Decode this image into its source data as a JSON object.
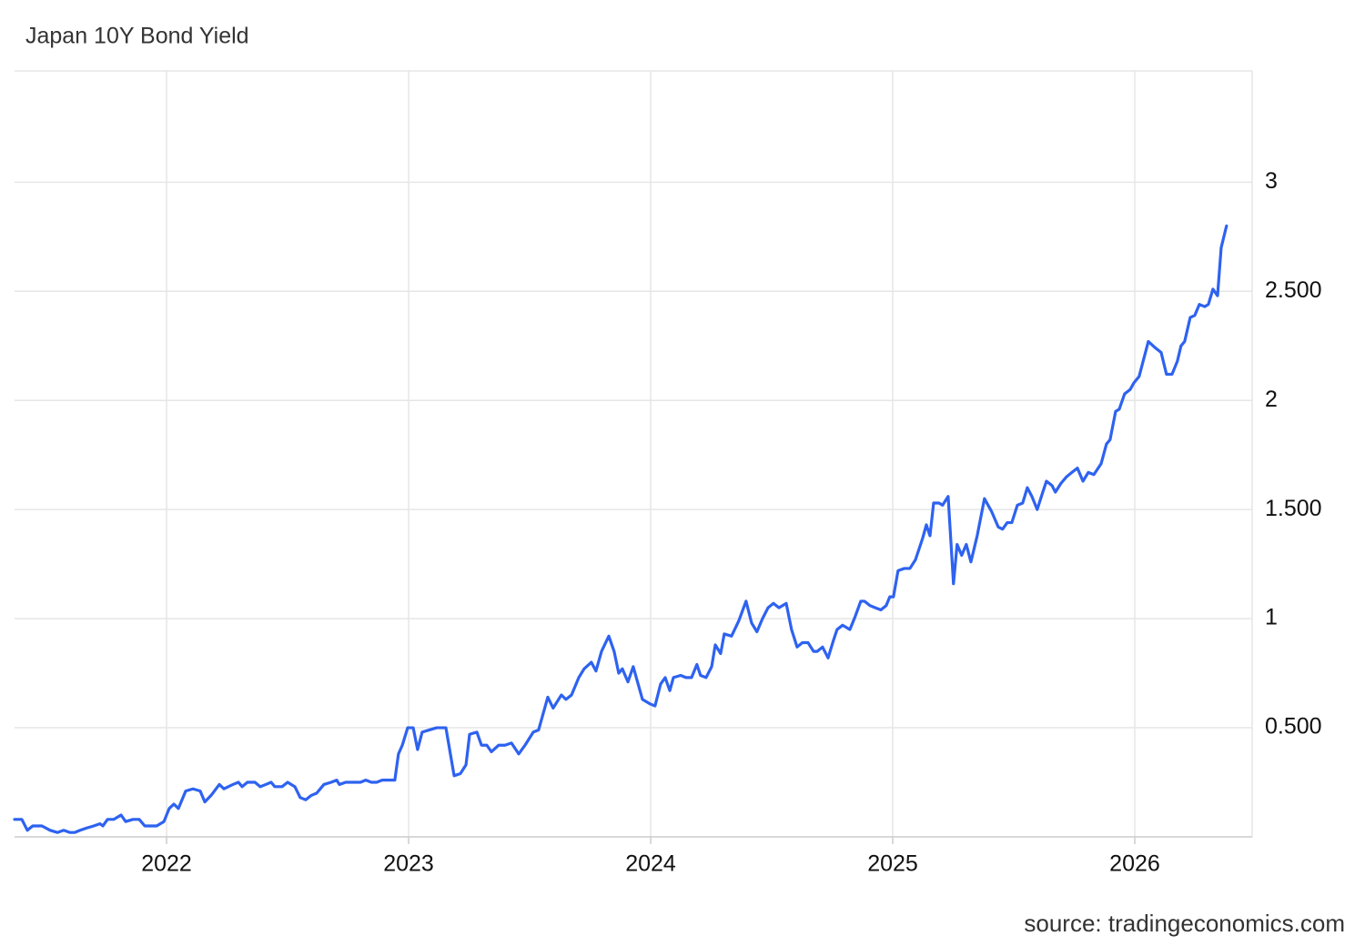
{
  "chart_data": {
    "type": "line",
    "title": "Japan 10Y Bond Yield",
    "source": "source: tradingeconomics.com",
    "color": "#2e62f0",
    "grid": true,
    "xlim": [
      2021.372,
      2026.485
    ],
    "xticks": [
      2022,
      2023,
      2024,
      2025,
      2026
    ],
    "ylim": [
      0,
      3.51
    ],
    "yticks": [
      {
        "value": 0.5,
        "label": "0.500"
      },
      1,
      {
        "value": 1.5,
        "label": "1.500"
      },
      2,
      {
        "value": 2.5,
        "label": "2.500"
      },
      3
    ],
    "x": [
      2021.372,
      2021.402,
      2021.425,
      2021.447,
      2021.485,
      2021.519,
      2021.549,
      2021.575,
      2021.601,
      2021.62,
      2021.643,
      2021.669,
      2021.699,
      2021.725,
      2021.737,
      2021.756,
      2021.782,
      2021.812,
      2021.831,
      2021.861,
      2021.887,
      2021.91,
      2021.936,
      2021.959,
      2021.989,
      2022.011,
      2022.03,
      2022.049,
      2022.079,
      2022.109,
      2022.139,
      2022.158,
      2022.184,
      2022.218,
      2022.237,
      2022.274,
      2022.297,
      2022.312,
      2022.334,
      2022.365,
      2022.387,
      2022.41,
      2022.432,
      2022.447,
      2022.477,
      2022.5,
      2022.53,
      2022.552,
      2022.575,
      2022.598,
      2022.62,
      2022.65,
      2022.68,
      2022.703,
      2022.714,
      2022.74,
      2022.778,
      2022.801,
      2022.823,
      2022.846,
      2022.868,
      2022.891,
      2022.913,
      2022.943,
      2022.958,
      2022.974,
      2022.996,
      2023.019,
      2023.037,
      2023.056,
      2023.086,
      2023.116,
      2023.154,
      2023.188,
      2023.214,
      2023.237,
      2023.252,
      2023.282,
      2023.301,
      2023.323,
      2023.342,
      2023.372,
      2023.398,
      2023.425,
      2023.455,
      2023.481,
      2023.515,
      2023.537,
      2023.575,
      2023.597,
      2023.631,
      2023.65,
      2023.673,
      2023.703,
      2023.725,
      2023.755,
      2023.774,
      2023.797,
      2023.827,
      2023.849,
      2023.868,
      2023.883,
      2023.906,
      2023.928,
      2023.966,
      2023.996,
      2024.018,
      2024.041,
      2024.06,
      2024.079,
      2024.094,
      2024.124,
      2024.146,
      2024.169,
      2024.191,
      2024.206,
      2024.229,
      2024.252,
      2024.267,
      2024.289,
      2024.304,
      2024.334,
      2024.364,
      2024.394,
      2024.417,
      2024.439,
      2024.462,
      2024.485,
      2024.507,
      2024.53,
      2024.56,
      2024.582,
      2024.605,
      2024.627,
      2024.65,
      2024.673,
      2024.688,
      2024.71,
      2024.733,
      2024.755,
      2024.77,
      2024.793,
      2024.823,
      2024.845,
      2024.868,
      2024.883,
      2024.906,
      2024.928,
      2024.951,
      2024.973,
      2024.988,
      2025.003,
      2025.022,
      2025.048,
      2025.071,
      2025.094,
      2025.124,
      2025.139,
      2025.154,
      2025.169,
      2025.191,
      2025.206,
      2025.229,
      2025.251,
      2025.266,
      2025.285,
      2025.304,
      2025.323,
      2025.349,
      2025.379,
      2025.409,
      2025.436,
      2025.454,
      2025.473,
      2025.492,
      2025.515,
      2025.537,
      2025.556,
      2025.575,
      2025.597,
      2025.62,
      2025.635,
      2025.658,
      2025.672,
      2025.695,
      2025.718,
      2025.74,
      2025.763,
      2025.786,
      2025.808,
      2025.831,
      2025.861,
      2025.883,
      2025.898,
      2025.921,
      2025.936,
      2025.958,
      2025.981,
      2025.996,
      2026.018,
      2026.056,
      2026.086,
      2026.109,
      2026.131,
      2026.154,
      2026.176,
      2026.191,
      2026.206,
      2026.229,
      2026.248,
      2026.267,
      2026.289,
      2026.304,
      2026.323,
      2026.342,
      2026.357,
      2026.379
    ],
    "values": [
      0.08,
      0.08,
      0.03,
      0.05,
      0.05,
      0.03,
      0.02,
      0.03,
      0.02,
      0.02,
      0.03,
      0.04,
      0.05,
      0.06,
      0.05,
      0.08,
      0.08,
      0.1,
      0.07,
      0.08,
      0.08,
      0.05,
      0.05,
      0.05,
      0.07,
      0.13,
      0.15,
      0.13,
      0.21,
      0.22,
      0.21,
      0.16,
      0.19,
      0.24,
      0.22,
      0.24,
      0.25,
      0.23,
      0.25,
      0.25,
      0.23,
      0.24,
      0.25,
      0.23,
      0.23,
      0.25,
      0.23,
      0.18,
      0.17,
      0.19,
      0.2,
      0.24,
      0.25,
      0.26,
      0.24,
      0.25,
      0.25,
      0.25,
      0.26,
      0.25,
      0.25,
      0.26,
      0.26,
      0.26,
      0.38,
      0.42,
      0.5,
      0.5,
      0.4,
      0.48,
      0.49,
      0.5,
      0.5,
      0.28,
      0.29,
      0.33,
      0.47,
      0.48,
      0.42,
      0.42,
      0.39,
      0.42,
      0.42,
      0.43,
      0.38,
      0.42,
      0.48,
      0.49,
      0.64,
      0.59,
      0.65,
      0.63,
      0.65,
      0.73,
      0.77,
      0.8,
      0.76,
      0.85,
      0.92,
      0.85,
      0.75,
      0.77,
      0.71,
      0.78,
      0.63,
      0.61,
      0.6,
      0.7,
      0.73,
      0.67,
      0.73,
      0.74,
      0.73,
      0.73,
      0.79,
      0.74,
      0.73,
      0.78,
      0.88,
      0.84,
      0.93,
      0.92,
      0.99,
      1.08,
      0.98,
      0.94,
      1.0,
      1.05,
      1.07,
      1.05,
      1.07,
      0.95,
      0.87,
      0.89,
      0.89,
      0.85,
      0.85,
      0.87,
      0.82,
      0.9,
      0.95,
      0.97,
      0.95,
      1.01,
      1.08,
      1.08,
      1.06,
      1.05,
      1.04,
      1.06,
      1.1,
      1.1,
      1.22,
      1.23,
      1.23,
      1.27,
      1.37,
      1.43,
      1.38,
      1.53,
      1.53,
      1.52,
      1.56,
      1.16,
      1.34,
      1.29,
      1.34,
      1.26,
      1.38,
      1.55,
      1.49,
      1.42,
      1.41,
      1.44,
      1.44,
      1.52,
      1.53,
      1.6,
      1.56,
      1.5,
      1.58,
      1.63,
      1.61,
      1.58,
      1.62,
      1.65,
      1.67,
      1.69,
      1.63,
      1.67,
      1.66,
      1.71,
      1.8,
      1.82,
      1.95,
      1.96,
      2.03,
      2.05,
      2.08,
      2.11,
      2.27,
      2.24,
      2.22,
      2.12,
      2.12,
      2.18,
      2.25,
      2.27,
      2.38,
      2.39,
      2.44,
      2.43,
      2.44,
      2.51,
      2.48,
      2.7,
      2.8
    ]
  }
}
